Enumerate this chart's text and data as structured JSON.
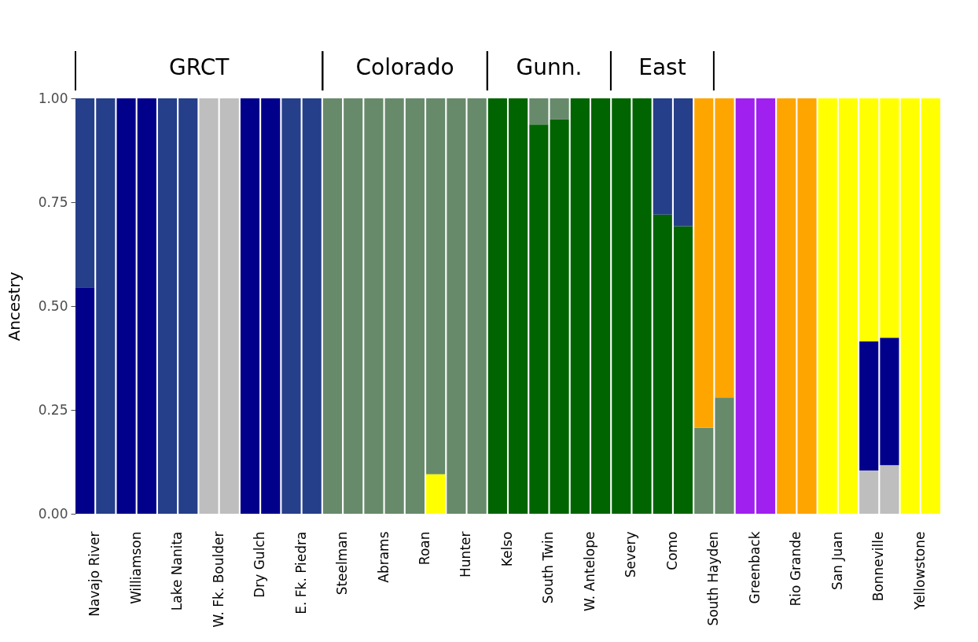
{
  "chart_data": {
    "type": "bar",
    "stacked": true,
    "ylabel": "Ancestry",
    "categories": [
      "Navajo River",
      null,
      "Williamson",
      null,
      "Lake Nanita",
      null,
      "W. Fk. Boulder",
      null,
      "Dry Gulch",
      null,
      "E. Fk. Piedra",
      null,
      "Steelman",
      null,
      "Abrams",
      null,
      "Roan",
      null,
      "Hunter",
      null,
      "Kelso",
      null,
      "South Twin",
      null,
      "W. Antelope",
      null,
      "Severy",
      null,
      "Como",
      null,
      "South Hayden",
      null,
      "Greenback",
      null,
      "Rio Grande",
      null,
      "San Juan",
      null,
      "Bonneville",
      null,
      "Yellowstone",
      null
    ],
    "series": [
      {
        "color": "#bebebe",
        "values": [
          0,
          0,
          0,
          0,
          0,
          0,
          1,
          1,
          0,
          0,
          0,
          0,
          0,
          0,
          0,
          0,
          0,
          0,
          0,
          0,
          0,
          0,
          0,
          0,
          0,
          0,
          0,
          0,
          0,
          0,
          0,
          0,
          0,
          0,
          0,
          0,
          0,
          0,
          0.104,
          0.117,
          0,
          0
        ]
      },
      {
        "color": "#00008b",
        "values": [
          0.545,
          0,
          1,
          1,
          0,
          0,
          0,
          0,
          1,
          1,
          0,
          0,
          0,
          0,
          0,
          0,
          0,
          0,
          0,
          0,
          0,
          0,
          0,
          0,
          0,
          0,
          0,
          0,
          0,
          0,
          0,
          0,
          0,
          0,
          0,
          0,
          0,
          0,
          0.311,
          0.307,
          0,
          0
        ]
      },
      {
        "color": "#ffff00",
        "values": [
          0,
          0,
          0,
          0,
          0,
          0,
          0,
          0,
          0,
          0,
          0,
          0,
          0,
          0,
          0,
          0,
          0,
          0.095,
          0,
          0,
          0,
          0,
          0,
          0,
          0,
          0,
          0,
          0,
          0,
          0,
          0,
          0,
          0,
          0,
          0,
          0,
          1,
          1,
          0.585,
          0.576,
          1,
          1
        ]
      },
      {
        "color": "#006400",
        "values": [
          0,
          0,
          0,
          0,
          0,
          0,
          0,
          0,
          0,
          0,
          0,
          0,
          0,
          0,
          0,
          0,
          0,
          0,
          0,
          0,
          1,
          1,
          0.937,
          0.949,
          1,
          1,
          1,
          1,
          0.72,
          0.692,
          0,
          0,
          0,
          0,
          0,
          0,
          0,
          0,
          0,
          0,
          0,
          0
        ]
      },
      {
        "color": "#678a6b",
        "values": [
          0,
          0,
          0,
          0,
          0,
          0,
          0,
          0,
          0,
          0,
          0,
          0,
          1,
          1,
          1,
          1,
          1,
          0.905,
          1,
          1,
          0,
          0,
          0.063,
          0.051,
          0,
          0,
          0,
          0,
          0,
          0,
          0.207,
          0.28,
          0,
          0,
          0,
          0,
          0,
          0,
          0,
          0,
          0,
          0
        ]
      },
      {
        "color": "#263f8a",
        "values": [
          0.455,
          1,
          0,
          0,
          1,
          1,
          0,
          0,
          0,
          0,
          1,
          1,
          0,
          0,
          0,
          0,
          0,
          0,
          0,
          0,
          0,
          0,
          0,
          0,
          0,
          0,
          0,
          0,
          0.28,
          0.308,
          0,
          0,
          0,
          0,
          0,
          0,
          0,
          0,
          0,
          0,
          0,
          0
        ]
      },
      {
        "color": "#ffa500",
        "values": [
          0,
          0,
          0,
          0,
          0,
          0,
          0,
          0,
          0,
          0,
          0,
          0,
          0,
          0,
          0,
          0,
          0,
          0,
          0,
          0,
          0,
          0,
          0,
          0,
          0,
          0,
          0,
          0,
          0,
          0,
          0.793,
          0.72,
          0,
          0,
          1,
          1,
          0,
          0,
          0,
          0,
          0,
          0
        ]
      },
      {
        "color": "#a020f0",
        "values": [
          0,
          0,
          0,
          0,
          0,
          0,
          0,
          0,
          0,
          0,
          0,
          0,
          0,
          0,
          0,
          0,
          0,
          0,
          0,
          0,
          0,
          0,
          0,
          0,
          0,
          0,
          0,
          0,
          0,
          0,
          0,
          0,
          1,
          1,
          0,
          0,
          0,
          0,
          0,
          0,
          0,
          0
        ]
      }
    ],
    "ylim": [
      0,
      1
    ],
    "yticks": [
      {
        "value": 0,
        "label": "0.00"
      },
      {
        "value": 0.25,
        "label": "0.25"
      },
      {
        "value": 0.5,
        "label": "0.50"
      },
      {
        "value": 0.75,
        "label": "0.75"
      },
      {
        "value": 1,
        "label": "1.00"
      }
    ],
    "annotations": [
      "GRCT",
      "Colorado",
      "Gunn.",
      "East"
    ]
  }
}
